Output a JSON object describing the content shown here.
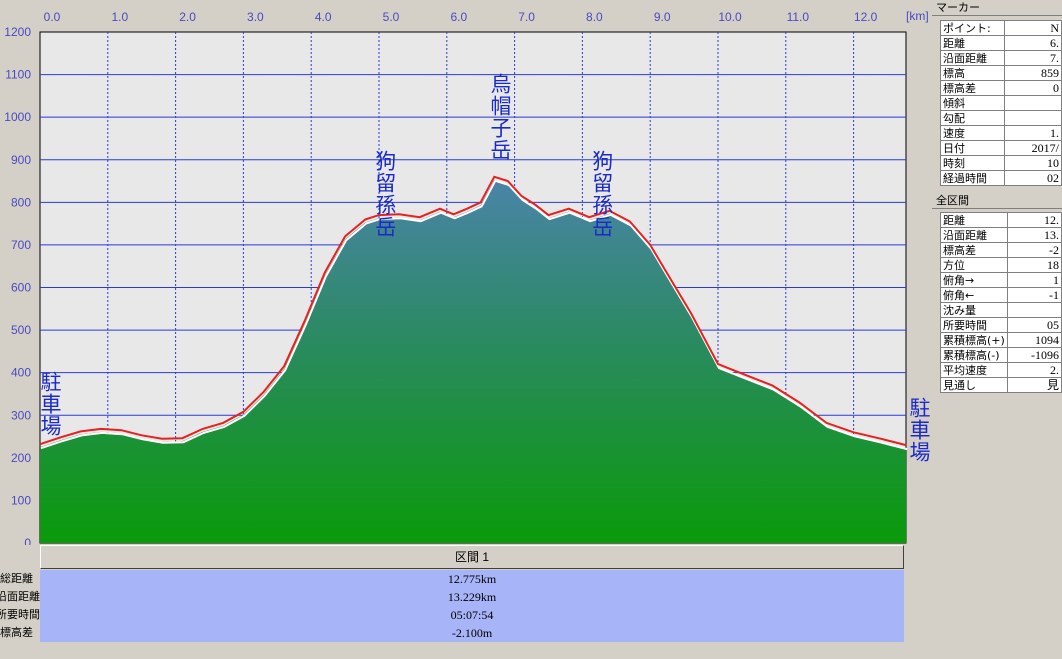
{
  "chart_data": {
    "type": "area",
    "x_unit": "[km]",
    "x_ticks": [
      "0.0",
      "1.0",
      "2.0",
      "3.0",
      "4.0",
      "5.0",
      "6.0",
      "7.0",
      "8.0",
      "9.0",
      "10.0",
      "11.0",
      "12.0"
    ],
    "y_ticks": [
      "0",
      "100",
      "200",
      "300",
      "400",
      "500",
      "600",
      "700",
      "800",
      "900",
      "1000",
      "1100",
      "1200"
    ],
    "xlim": [
      0,
      12.775
    ],
    "ylim": [
      0,
      1200
    ],
    "grid": true,
    "x": [
      0,
      0.3,
      0.6,
      0.9,
      1.2,
      1.5,
      1.8,
      2.1,
      2.4,
      2.7,
      3.0,
      3.3,
      3.6,
      3.9,
      4.2,
      4.5,
      4.8,
      5.0,
      5.3,
      5.6,
      5.9,
      6.1,
      6.3,
      6.5,
      6.7,
      6.9,
      7.1,
      7.3,
      7.5,
      7.8,
      8.1,
      8.4,
      8.7,
      9.0,
      9.3,
      9.6,
      10.0,
      10.4,
      10.8,
      11.2,
      11.6,
      12.0,
      12.4,
      12.775
    ],
    "elevation": [
      232,
      248,
      262,
      268,
      265,
      253,
      245,
      246,
      268,
      282,
      308,
      355,
      415,
      520,
      635,
      720,
      760,
      770,
      772,
      765,
      785,
      772,
      785,
      800,
      860,
      850,
      815,
      795,
      770,
      785,
      765,
      780,
      755,
      700,
      620,
      540,
      420,
      395,
      370,
      330,
      282,
      260,
      245,
      230
    ],
    "labels": [
      {
        "text": "駐車場",
        "x_km": 0.0,
        "y_m": 360
      },
      {
        "text": "狗留孫岳",
        "x_km": 5.1,
        "y_m": 880
      },
      {
        "text": "烏帽子岳",
        "x_km": 6.8,
        "y_m": 1060
      },
      {
        "text": "狗留孫岳",
        "x_km": 8.3,
        "y_m": 880
      },
      {
        "text": "駐車場",
        "x_km": 12.775,
        "y_m": 300
      }
    ]
  },
  "section": {
    "header": "区間 1",
    "rows": [
      {
        "label": "総距離",
        "value": "12.775km"
      },
      {
        "label": "沿面距離",
        "value": "13.229km"
      },
      {
        "label": "所要時間",
        "value": "05:07:54"
      },
      {
        "label": "標高差",
        "value": "-2.100m"
      }
    ]
  },
  "marker": {
    "title": "マーカー",
    "rows": [
      {
        "key": "ポイント:",
        "value": "N"
      },
      {
        "key": "距離",
        "value": "6."
      },
      {
        "key": "沿面距離",
        "value": "7."
      },
      {
        "key": "標高",
        "value": "859"
      },
      {
        "key": "標高差",
        "value": "0"
      },
      {
        "key": "傾斜",
        "value": ""
      },
      {
        "key": "勾配",
        "value": ""
      },
      {
        "key": "速度",
        "value": "1."
      },
      {
        "key": "日付",
        "value": "2017/"
      },
      {
        "key": "時刻",
        "value": "10"
      },
      {
        "key": "経過時間",
        "value": "02"
      }
    ]
  },
  "total": {
    "title": "全区間",
    "rows": [
      {
        "key": "距離",
        "value": "12."
      },
      {
        "key": "沿面距離",
        "value": "13."
      },
      {
        "key": "標高差",
        "value": "-2"
      },
      {
        "key": "方位",
        "value": "18"
      },
      {
        "key": "俯角→",
        "value": "1"
      },
      {
        "key": "俯角←",
        "value": "-1"
      },
      {
        "key": "沈み量",
        "value": ""
      },
      {
        "key": "所要時間",
        "value": "05"
      },
      {
        "key": "累積標高(+)",
        "value": "1094"
      },
      {
        "key": "累積標高(-)",
        "value": "-1096"
      },
      {
        "key": "平均速度",
        "value": "2."
      },
      {
        "key": "見通し",
        "value": "見"
      }
    ]
  },
  "colors": {
    "profile_top": "#4a84a8",
    "profile_bottom": "#0a9a0a",
    "track_line": "#e82020",
    "grid": "#2a3ad8",
    "plot_bg": "#e8e8e8"
  }
}
